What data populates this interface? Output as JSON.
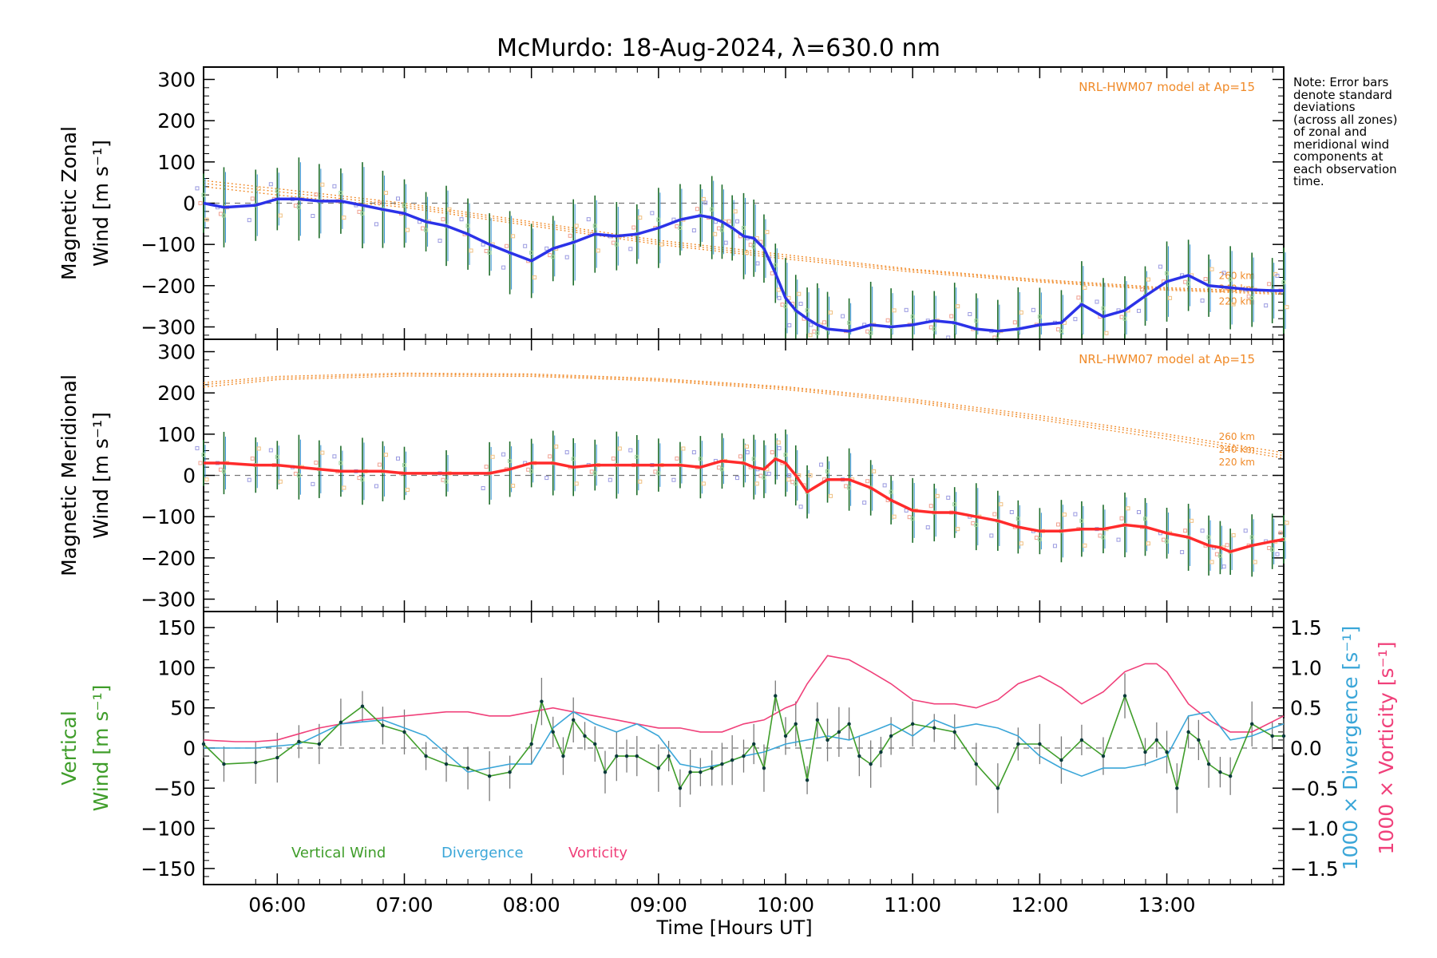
{
  "title": "McMurdo: 18-Aug-2024, λ=630.0 nm",
  "note": [
    "Note: Error bars",
    "denote standard",
    "deviations",
    "(across all zones)",
    "of zonal and",
    "meridional wind",
    "components at",
    "each observation",
    "time."
  ],
  "xlabel": "Time [Hours UT]",
  "x_ticks": [
    "06:00",
    "07:00",
    "08:00",
    "09:00",
    "10:00",
    "11:00",
    "12:00",
    "13:00"
  ],
  "chart_data": [
    {
      "type": "line",
      "panel": "zonal",
      "ylabel_line1": "Magnetic Zonal",
      "ylabel_line2": "Wind [m s⁻¹]",
      "ylim": [
        -330,
        330
      ],
      "y_ticks": [
        "300",
        "200",
        "100",
        "0",
        "−100",
        "−200",
        "−300"
      ],
      "xlim": [
        5.42,
        13.92
      ],
      "model_label": "NRL-HWM07 model at Ap=15",
      "model_altitudes": [
        "260 km",
        "240 km",
        "220 km"
      ],
      "colors": {
        "series": "#2b32e8",
        "model": "#f08a28",
        "errorbar": "#1e6d2a"
      },
      "series": [
        {
          "name": "Zonal wind",
          "x": [
            5.42,
            5.58,
            5.83,
            6.0,
            6.17,
            6.33,
            6.5,
            6.67,
            6.83,
            7.0,
            7.17,
            7.33,
            7.5,
            7.67,
            7.83,
            8.0,
            8.17,
            8.33,
            8.5,
            8.67,
            8.83,
            9.0,
            9.17,
            9.33,
            9.42,
            9.5,
            9.58,
            9.67,
            9.75,
            9.83,
            9.92,
            10.0,
            10.08,
            10.17,
            10.25,
            10.33,
            10.5,
            10.67,
            10.83,
            11.0,
            11.17,
            11.33,
            11.5,
            11.67,
            11.83,
            12.0,
            12.17,
            12.33,
            12.5,
            12.67,
            12.83,
            13.0,
            13.17,
            13.33,
            13.5,
            13.67,
            13.83,
            13.92
          ],
          "values": [
            0,
            -10,
            -5,
            10,
            10,
            5,
            5,
            -5,
            -15,
            -25,
            -45,
            -55,
            -75,
            -100,
            -120,
            -140,
            -110,
            -95,
            -75,
            -80,
            -75,
            -60,
            -40,
            -30,
            -35,
            -45,
            -60,
            -80,
            -85,
            -110,
            -170,
            -230,
            -260,
            -280,
            -295,
            -305,
            -310,
            -295,
            -300,
            -295,
            -285,
            -290,
            -305,
            -310,
            -305,
            -295,
            -290,
            -245,
            -275,
            -260,
            -225,
            -190,
            -175,
            -200,
            -205,
            -210,
            -212,
            -212
          ]
        }
      ],
      "model_hwm": {
        "x": [
          5.42,
          6.0,
          7.0,
          8.0,
          9.0,
          10.0,
          11.0,
          12.0,
          13.0,
          13.92
        ],
        "alt_260": [
          55,
          35,
          0,
          -45,
          -90,
          -125,
          -160,
          -185,
          -205,
          -215
        ],
        "alt_240": [
          48,
          28,
          -5,
          -50,
          -95,
          -130,
          -163,
          -188,
          -208,
          -218
        ],
        "alt_220": [
          40,
          20,
          -10,
          -55,
          -100,
          -135,
          -167,
          -191,
          -211,
          -221
        ]
      },
      "errorbar_halfwidth": 90
    },
    {
      "type": "line",
      "panel": "meridional",
      "ylabel_line1": "Magnetic Meridional",
      "ylabel_line2": "Wind [m s⁻¹]",
      "ylim": [
        -330,
        330
      ],
      "y_ticks": [
        "300",
        "200",
        "100",
        "0",
        "−100",
        "−200",
        "−300"
      ],
      "xlim": [
        5.42,
        13.92
      ],
      "model_label": "NRL-HWM07 model at Ap=15",
      "model_altitudes": [
        "260 km",
        "240 km",
        "220 km"
      ],
      "colors": {
        "series": "#ff2b2b",
        "model": "#f08a28",
        "errorbar": "#1e6d2a"
      },
      "series": [
        {
          "name": "Meridional wind",
          "x": [
            5.42,
            5.58,
            5.83,
            6.0,
            6.17,
            6.33,
            6.5,
            6.67,
            6.83,
            7.0,
            7.33,
            7.67,
            7.83,
            8.0,
            8.17,
            8.33,
            8.5,
            8.67,
            8.83,
            9.0,
            9.17,
            9.33,
            9.5,
            9.67,
            9.75,
            9.83,
            9.92,
            10.0,
            10.08,
            10.17,
            10.33,
            10.5,
            10.67,
            10.83,
            11.0,
            11.17,
            11.33,
            11.5,
            11.67,
            11.83,
            12.0,
            12.17,
            12.33,
            12.5,
            12.67,
            12.83,
            13.0,
            13.17,
            13.33,
            13.42,
            13.5,
            13.67,
            13.83,
            13.92
          ],
          "values": [
            30,
            30,
            25,
            25,
            20,
            15,
            10,
            10,
            10,
            5,
            5,
            5,
            15,
            30,
            30,
            20,
            25,
            25,
            25,
            25,
            25,
            20,
            35,
            30,
            20,
            15,
            40,
            30,
            0,
            -40,
            -10,
            -10,
            -30,
            -60,
            -85,
            -90,
            -90,
            -100,
            -110,
            -125,
            -135,
            -135,
            -130,
            -130,
            -120,
            -125,
            -140,
            -150,
            -170,
            -175,
            -185,
            -170,
            -160,
            -155
          ]
        }
      ],
      "model_hwm": {
        "x": [
          5.42,
          6.0,
          7.0,
          8.0,
          9.0,
          10.0,
          11.0,
          12.0,
          13.0,
          13.92
        ],
        "alt_260": [
          225,
          240,
          248,
          246,
          235,
          215,
          185,
          145,
          100,
          55
        ],
        "alt_240": [
          220,
          236,
          245,
          243,
          232,
          212,
          181,
          140,
          95,
          48
        ],
        "alt_220": [
          214,
          232,
          241,
          240,
          229,
          208,
          177,
          135,
          88,
          42
        ]
      },
      "errorbar_halfwidth": 70
    },
    {
      "type": "line",
      "panel": "vertical",
      "ylabel_line1": "Vertical",
      "ylabel_line2": "Wind [m s⁻¹]",
      "ylim": [
        -170,
        170
      ],
      "y_ticks": [
        "150",
        "100",
        "50",
        "0",
        "−50",
        "−100",
        "−150"
      ],
      "y2lim": [
        -1.7,
        1.7
      ],
      "y2_ticks": [
        "1.5",
        "1.0",
        "0.5",
        "0.0",
        "−0.5",
        "−1.0",
        "−1.5"
      ],
      "y2label_divergence": "1000 × Divergence [s⁻¹]",
      "y2label_vorticity": "1000 × Vorticity [s⁻¹]",
      "xlim": [
        5.42,
        13.92
      ],
      "legend": [
        "Vertical Wind",
        "Divergence",
        "Vorticity"
      ],
      "colors": {
        "vertical": "#3f9d2a",
        "divergence": "#3aa6d8",
        "vorticity": "#f0407a",
        "errorbar": "#7a7a7a"
      },
      "series": [
        {
          "name": "Vertical Wind",
          "x": [
            5.42,
            5.58,
            5.83,
            6.0,
            6.17,
            6.33,
            6.5,
            6.67,
            6.83,
            7.0,
            7.17,
            7.33,
            7.5,
            7.67,
            7.83,
            8.0,
            8.08,
            8.17,
            8.25,
            8.33,
            8.42,
            8.5,
            8.58,
            8.67,
            8.75,
            8.83,
            9.0,
            9.08,
            9.17,
            9.25,
            9.33,
            9.42,
            9.5,
            9.58,
            9.67,
            9.75,
            9.83,
            9.92,
            10.0,
            10.08,
            10.17,
            10.25,
            10.33,
            10.42,
            10.5,
            10.58,
            10.67,
            10.75,
            10.83,
            11.0,
            11.17,
            11.33,
            11.5,
            11.67,
            11.83,
            12.0,
            12.17,
            12.33,
            12.5,
            12.67,
            12.83,
            12.92,
            13.0,
            13.08,
            13.17,
            13.25,
            13.33,
            13.42,
            13.5,
            13.67,
            13.83,
            13.92
          ],
          "values": [
            5,
            -20,
            -18,
            -12,
            8,
            5,
            32,
            52,
            28,
            20,
            -10,
            -20,
            -25,
            -35,
            -30,
            5,
            58,
            20,
            -10,
            35,
            15,
            5,
            -30,
            -10,
            -10,
            -10,
            -25,
            -10,
            -50,
            -30,
            -30,
            -25,
            -20,
            -15,
            -10,
            5,
            -25,
            65,
            15,
            30,
            -40,
            35,
            10,
            20,
            30,
            -10,
            -20,
            -5,
            15,
            30,
            25,
            20,
            -20,
            -50,
            5,
            5,
            -15,
            10,
            -10,
            65,
            -5,
            10,
            -5,
            -50,
            20,
            10,
            -20,
            -30,
            -35,
            30,
            15,
            15
          ]
        },
        {
          "name": "Divergence",
          "x": [
            5.42,
            5.83,
            6.17,
            6.5,
            6.83,
            7.17,
            7.5,
            7.83,
            8.0,
            8.17,
            8.33,
            8.5,
            8.67,
            8.83,
            9.0,
            9.17,
            9.33,
            9.5,
            9.67,
            9.83,
            10.0,
            10.17,
            10.33,
            10.5,
            10.67,
            10.83,
            11.0,
            11.17,
            11.33,
            11.5,
            11.67,
            11.83,
            12.0,
            12.17,
            12.33,
            12.5,
            12.67,
            12.83,
            13.0,
            13.17,
            13.33,
            13.5,
            13.67,
            13.83,
            13.92
          ],
          "values": [
            0.0,
            0.0,
            0.05,
            0.3,
            0.35,
            0.15,
            -0.3,
            -0.2,
            -0.2,
            0.25,
            0.45,
            0.3,
            0.2,
            0.3,
            0.15,
            -0.2,
            -0.25,
            -0.2,
            -0.1,
            -0.05,
            0.05,
            0.1,
            0.15,
            0.1,
            0.2,
            0.3,
            0.15,
            0.35,
            0.25,
            0.3,
            0.25,
            0.15,
            -0.1,
            -0.25,
            -0.35,
            -0.25,
            -0.25,
            -0.2,
            -0.1,
            0.4,
            0.45,
            0.1,
            0.15,
            0.25,
            0.3
          ]
        },
        {
          "name": "Vorticity",
          "x": [
            5.42,
            5.67,
            5.83,
            6.0,
            6.33,
            6.67,
            7.0,
            7.33,
            7.5,
            7.67,
            7.83,
            8.0,
            8.17,
            8.33,
            8.5,
            8.67,
            8.83,
            9.0,
            9.17,
            9.33,
            9.5,
            9.67,
            9.83,
            10.0,
            10.08,
            10.17,
            10.33,
            10.5,
            10.67,
            10.83,
            11.0,
            11.17,
            11.33,
            11.5,
            11.67,
            11.83,
            12.0,
            12.17,
            12.33,
            12.5,
            12.67,
            12.83,
            12.92,
            13.0,
            13.17,
            13.33,
            13.5,
            13.67,
            13.92
          ],
          "values": [
            0.1,
            0.08,
            0.08,
            0.1,
            0.25,
            0.35,
            0.4,
            0.45,
            0.45,
            0.4,
            0.4,
            0.45,
            0.5,
            0.45,
            0.4,
            0.35,
            0.3,
            0.25,
            0.25,
            0.2,
            0.2,
            0.3,
            0.35,
            0.5,
            0.55,
            0.8,
            1.15,
            1.1,
            0.95,
            0.8,
            0.6,
            0.55,
            0.55,
            0.5,
            0.6,
            0.8,
            0.9,
            0.75,
            0.55,
            0.7,
            0.95,
            1.05,
            1.05,
            0.95,
            0.55,
            0.35,
            0.2,
            0.2,
            0.4
          ]
        }
      ],
      "errorbar_halfwidth": 25
    }
  ]
}
